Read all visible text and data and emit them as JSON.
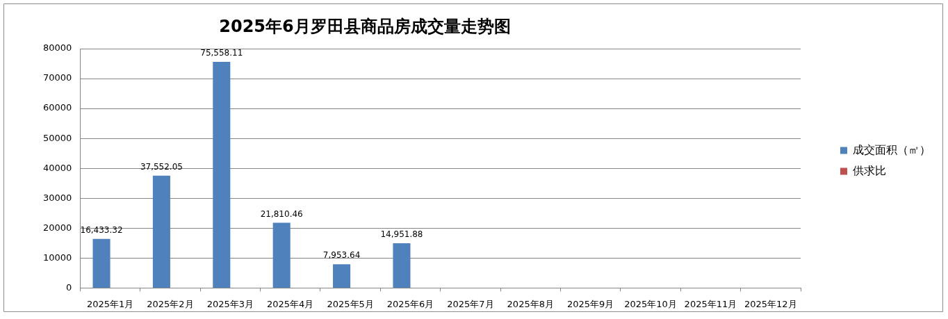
{
  "chart_data": {
    "type": "bar",
    "title": "2025年6月罗田县商品房成交量走势图",
    "categories": [
      "2025年1月",
      "2025年2月",
      "2025年3月",
      "2025年4月",
      "2025年5月",
      "2025年6月",
      "2025年7月",
      "2025年8月",
      "2025年9月",
      "2025年10月",
      "2025年11月",
      "2025年12月"
    ],
    "series": [
      {
        "name": "成交面积（㎡）",
        "color": "#4f81bd",
        "values": [
          16433.32,
          37552.05,
          75558.11,
          21810.46,
          7953.64,
          14951.88,
          null,
          null,
          null,
          null,
          null,
          null
        ],
        "value_labels": [
          "16,433.32",
          "37,552.05",
          "75,558.11",
          "21,810.46",
          "7,953.64",
          "14,951.88",
          null,
          null,
          null,
          null,
          null,
          null
        ]
      },
      {
        "name": "供求比",
        "color": "#c0504d",
        "values": [
          null,
          null,
          null,
          null,
          null,
          null,
          null,
          null,
          null,
          null,
          null,
          null
        ]
      }
    ],
    "ylim": [
      0,
      80000
    ],
    "yticks": [
      0,
      10000,
      20000,
      30000,
      40000,
      50000,
      60000,
      70000,
      80000
    ],
    "grid": "y",
    "legend": "right"
  }
}
